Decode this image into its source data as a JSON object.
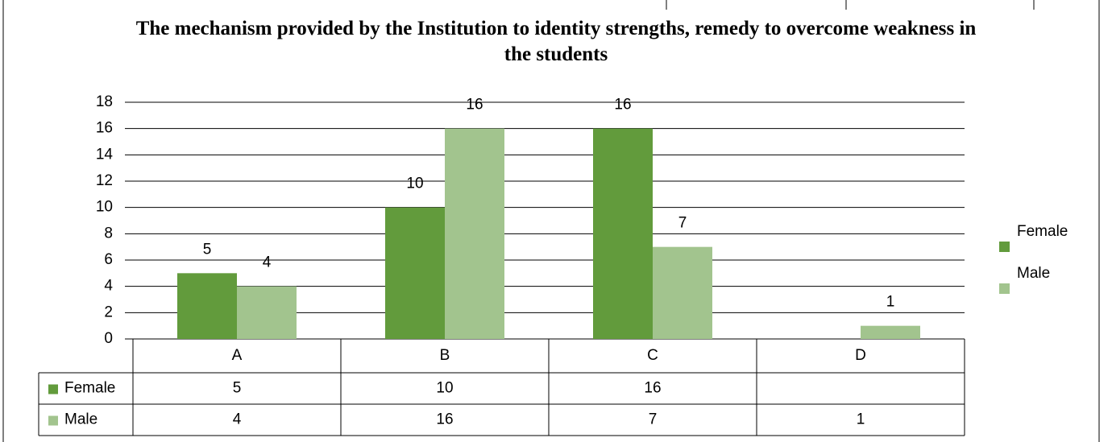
{
  "chart_data": {
    "type": "bar",
    "title": "The mechanism provided by the Institution to identity strengths, remedy to overcome weakness in the students",
    "categories": [
      "A",
      "B",
      "C",
      "D"
    ],
    "series": [
      {
        "name": "Female",
        "color": "#629b3c",
        "values": [
          5,
          10,
          16,
          null
        ]
      },
      {
        "name": "Male",
        "color": "#a2c48e",
        "values": [
          4,
          16,
          7,
          1
        ]
      }
    ],
    "ylim": [
      0,
      18
    ],
    "yticks": [
      0,
      2,
      4,
      6,
      8,
      10,
      12,
      14,
      16,
      18
    ],
    "grid": true,
    "legend": "right",
    "data_table": true
  }
}
